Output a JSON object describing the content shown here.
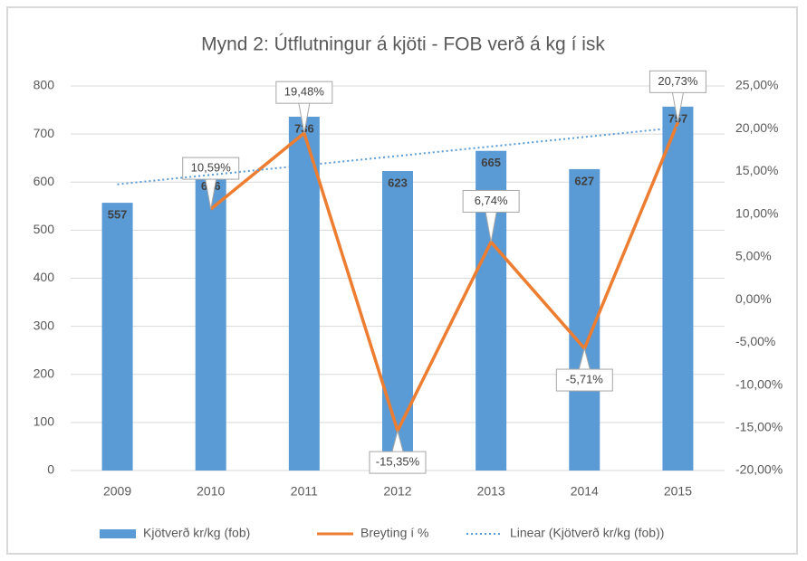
{
  "chart_data": {
    "type": "combo",
    "title": "Mynd 2: Útflutningur á kjöti - FOB verð á kg í isk",
    "categories": [
      "2009",
      "2010",
      "2011",
      "2012",
      "2013",
      "2014",
      "2015"
    ],
    "series": [
      {
        "name": "Kjötverð kr/kg (fob)",
        "type": "bar",
        "color": "#5b9bd5",
        "values": [
          557,
          616,
          736,
          623,
          665,
          627,
          757
        ]
      },
      {
        "name": "Breyting í %",
        "type": "line",
        "axis": "y2",
        "color": "#ed7d31",
        "values": [
          null,
          10.59,
          19.48,
          -15.35,
          6.74,
          -5.71,
          20.73
        ],
        "value_labels": [
          null,
          "10,59%",
          "19,48%",
          "-15,35%",
          "6,74%",
          "-5,71%",
          "20,73%"
        ]
      },
      {
        "name": "Linear (Kjötverð kr/kg (fob))",
        "type": "line",
        "dash": "dotted",
        "color": "#5b9bd5",
        "values": [
          595.4,
          615.1,
          634.8,
          654.4,
          674.1,
          693.8,
          713.5
        ]
      }
    ],
    "ylim": [
      0,
      800
    ],
    "yticks": [
      0,
      100,
      200,
      300,
      400,
      500,
      600,
      700,
      800
    ],
    "y2lim": [
      -20,
      25
    ],
    "y2ticks": [
      {
        "value": -20,
        "label": "-20,00%"
      },
      {
        "value": -15,
        "label": "-15,00%"
      },
      {
        "value": -10,
        "label": "-10,00%"
      },
      {
        "value": -5,
        "label": "-5,00%"
      },
      {
        "value": 0,
        "label": "0,00%"
      },
      {
        "value": 5,
        "label": "5,00%"
      },
      {
        "value": 10,
        "label": "10,00%"
      },
      {
        "value": 15,
        "label": "15,00%"
      },
      {
        "value": 20,
        "label": "20,00%"
      },
      {
        "value": 25,
        "label": "25,00%"
      }
    ],
    "grid": true,
    "legend": "bottom"
  }
}
